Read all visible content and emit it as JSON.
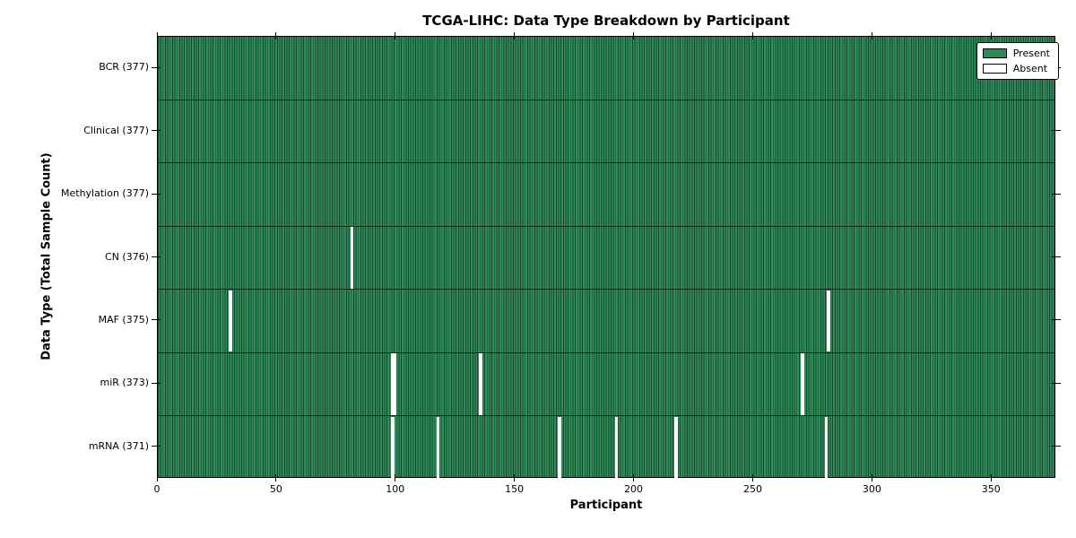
{
  "chart_data": {
    "type": "heatmap",
    "title": "TCGA-LIHC: Data Type Breakdown by Participant",
    "xlabel": "Participant",
    "ylabel": "Data Type (Total Sample Count)",
    "x_range": [
      0,
      377
    ],
    "n_participants": 377,
    "x_ticks": [
      0,
      50,
      100,
      150,
      200,
      250,
      300,
      350
    ],
    "grid": false,
    "legend_position": "upper right",
    "legend": [
      {
        "label": "Present",
        "color": "#2e8b57"
      },
      {
        "label": "Absent",
        "color": "#ffffff"
      }
    ],
    "colors": {
      "present_fill": "#2e8b57",
      "bar_edge": "#17472c",
      "absent_fill": "#ffffff",
      "axis": "#000000"
    },
    "rows": [
      {
        "label": "BCR (377)",
        "data_type": "BCR",
        "total": 377,
        "absent_participants": []
      },
      {
        "label": "Clinical (377)",
        "data_type": "Clinical",
        "total": 377,
        "absent_participants": []
      },
      {
        "label": "Methylation (377)",
        "data_type": "Methylation",
        "total": 377,
        "absent_participants": []
      },
      {
        "label": "CN (376)",
        "data_type": "CN",
        "total": 376,
        "absent_participants": [
          81
        ]
      },
      {
        "label": "MAF (375)",
        "data_type": "MAF",
        "total": 375,
        "absent_participants": [
          30,
          281
        ]
      },
      {
        "label": "miR (373)",
        "data_type": "miR",
        "total": 373,
        "absent_participants": [
          98,
          99,
          135,
          270
        ]
      },
      {
        "label": "mRNA (371)",
        "data_type": "mRNA",
        "total": 371,
        "absent_participants": [
          98,
          117,
          168,
          192,
          217,
          280
        ]
      }
    ]
  }
}
